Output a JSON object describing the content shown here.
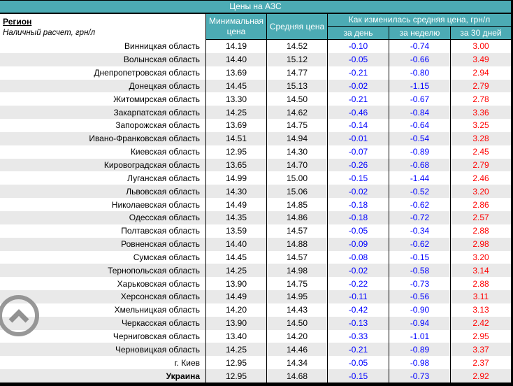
{
  "page": {
    "title_bar": "Цены на АЗС"
  },
  "header": {
    "region": "Регион",
    "region_note": "Наличный расчет, грн/л",
    "min_price": "Минимальная цена",
    "avg_price": "Средняя цена",
    "change_group": "Как изменилась средняя цена, грн/л",
    "change_day": "за день",
    "change_week": "за неделю",
    "change_month": "за 30 дней"
  },
  "rows": [
    {
      "region": "Винницкая область",
      "min": "14.19",
      "avg": "14.52",
      "day": "-0.10",
      "week": "-0.74",
      "month": "3.00"
    },
    {
      "region": "Волынская область",
      "min": "14.40",
      "avg": "15.12",
      "day": "-0.05",
      "week": "-0.66",
      "month": "3.49"
    },
    {
      "region": "Днепропетровская область",
      "min": "13.69",
      "avg": "14.77",
      "day": "-0.21",
      "week": "-0.80",
      "month": "2.94"
    },
    {
      "region": "Донецкая область",
      "min": "14.45",
      "avg": "15.13",
      "day": "-0.02",
      "week": "-1.15",
      "month": "2.79"
    },
    {
      "region": "Житомирская область",
      "min": "13.30",
      "avg": "14.50",
      "day": "-0.21",
      "week": "-0.67",
      "month": "2.78"
    },
    {
      "region": "Закарпатская область",
      "min": "14.25",
      "avg": "14.62",
      "day": "-0.46",
      "week": "-0.84",
      "month": "3.36"
    },
    {
      "region": "Запорожская область",
      "min": "13.69",
      "avg": "14.75",
      "day": "-0.14",
      "week": "-0.64",
      "month": "3.25"
    },
    {
      "region": "Ивано-Франковская область",
      "min": "14.51",
      "avg": "14.94",
      "day": "-0.01",
      "week": "-0.54",
      "month": "3.28"
    },
    {
      "region": "Киевская область",
      "min": "12.95",
      "avg": "14.30",
      "day": "-0.07",
      "week": "-0.89",
      "month": "2.45"
    },
    {
      "region": "Кировоградская область",
      "min": "13.65",
      "avg": "14.70",
      "day": "-0.26",
      "week": "-0.68",
      "month": "2.79"
    },
    {
      "region": "Луганская область",
      "min": "14.99",
      "avg": "15.00",
      "day": "-0.15",
      "week": "-1.44",
      "month": "2.46"
    },
    {
      "region": "Львовская область",
      "min": "14.30",
      "avg": "15.06",
      "day": "-0.02",
      "week": "-0.52",
      "month": "3.20"
    },
    {
      "region": "Николаевская область",
      "min": "14.49",
      "avg": "14.85",
      "day": "-0.18",
      "week": "-0.62",
      "month": "2.86"
    },
    {
      "region": "Одесская область",
      "min": "14.35",
      "avg": "14.86",
      "day": "-0.18",
      "week": "-0.72",
      "month": "2.57"
    },
    {
      "region": "Полтавская область",
      "min": "13.59",
      "avg": "14.57",
      "day": "-0.05",
      "week": "-0.34",
      "month": "2.88"
    },
    {
      "region": "Ровненская область",
      "min": "14.40",
      "avg": "14.88",
      "day": "-0.09",
      "week": "-0.62",
      "month": "2.98"
    },
    {
      "region": "Сумская область",
      "min": "14.45",
      "avg": "14.57",
      "day": "-0.08",
      "week": "-0.15",
      "month": "3.20"
    },
    {
      "region": "Тернопольская область",
      "min": "14.25",
      "avg": "14.98",
      "day": "-0.02",
      "week": "-0.58",
      "month": "3.14"
    },
    {
      "region": "Харьковская область",
      "min": "13.90",
      "avg": "14.75",
      "day": "-0.22",
      "week": "-0.73",
      "month": "2.88"
    },
    {
      "region": "Херсонская область",
      "min": "14.49",
      "avg": "14.95",
      "day": "-0.11",
      "week": "-0.56",
      "month": "3.11"
    },
    {
      "region": "Хмельницкая область",
      "min": "14.20",
      "avg": "14.43",
      "day": "-0.42",
      "week": "-0.90",
      "month": "3.13"
    },
    {
      "region": "Черкасская область",
      "min": "13.90",
      "avg": "14.50",
      "day": "-0.13",
      "week": "-0.94",
      "month": "2.42"
    },
    {
      "region": "Черниговская область",
      "min": "13.40",
      "avg": "14.20",
      "day": "-0.33",
      "week": "-1.01",
      "month": "2.95"
    },
    {
      "region": "Черновицкая область",
      "min": "14.25",
      "avg": "14.46",
      "day": "-0.21",
      "week": "-0.89",
      "month": "3.37"
    },
    {
      "region": "г. Киев",
      "min": "12.95",
      "avg": "14.34",
      "day": "-0.05",
      "week": "-0.98",
      "month": "2.37"
    },
    {
      "region": "Украина",
      "min": "12.95",
      "avg": "14.68",
      "day": "-0.15",
      "week": "-0.73",
      "month": "2.92",
      "total": true
    }
  ],
  "colors": {
    "header_bg": "#4cabb4",
    "row_alt_bg": "#e9e9e9",
    "negative_change": "#0000ff",
    "positive_change": "#ff0000",
    "scroll_icon": "#868686"
  },
  "icons": {
    "scroll_to_top": "chevron-up-circle"
  }
}
